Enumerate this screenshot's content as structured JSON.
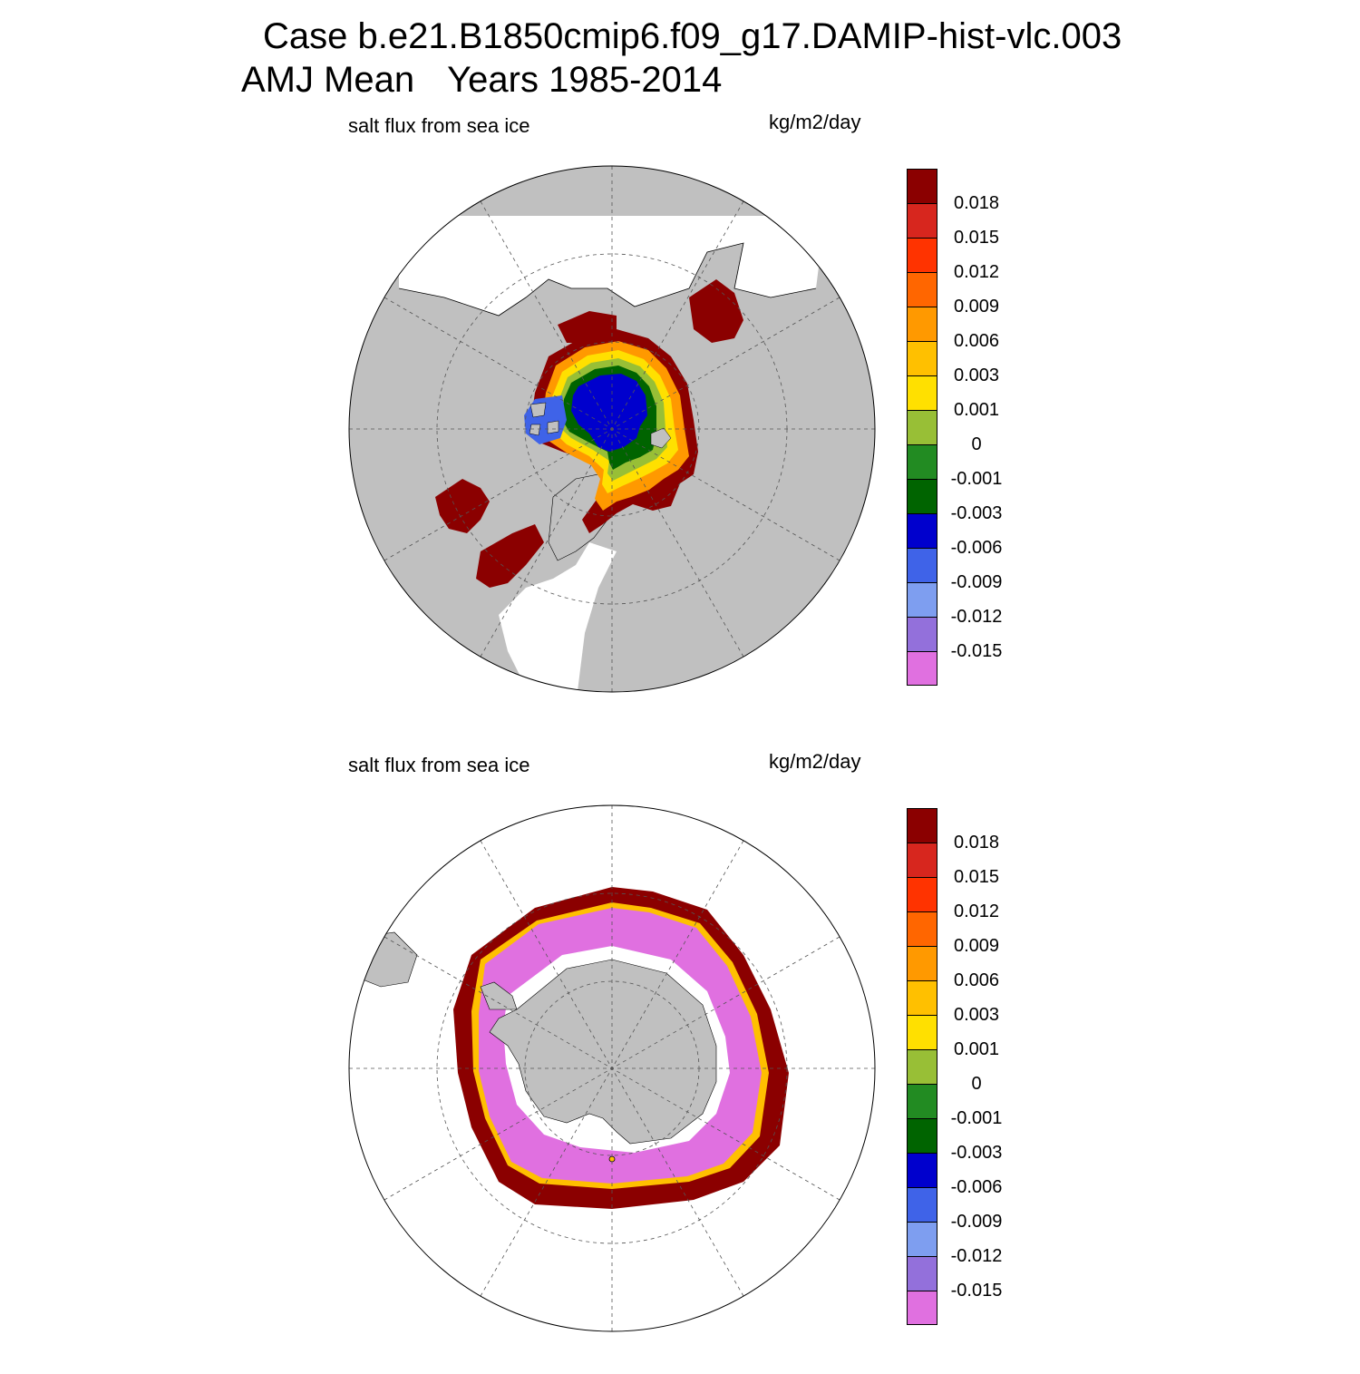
{
  "title": {
    "line1": "Case b.e21.B1850cmip6.f09_g17.DAMIP-hist-vlc.003",
    "line2_season": "AMJ Mean",
    "line2_years": "Years 1985-2014"
  },
  "panels": [
    {
      "id": "north",
      "variable_label": "salt flux from sea ice",
      "units_label": "kg/m2/day",
      "hemisphere": "north-polar-stereographic"
    },
    {
      "id": "south",
      "variable_label": "salt flux from sea ice",
      "units_label": "kg/m2/day",
      "hemisphere": "south-polar-stereographic"
    }
  ],
  "legend": {
    "levels": [
      "0.018",
      "0.015",
      "0.012",
      "0.009",
      "0.006",
      "0.003",
      "0.001",
      "0",
      "-0.001",
      "-0.003",
      "-0.006",
      "-0.009",
      "-0.012",
      "-0.015"
    ],
    "colors": [
      "#8b0000",
      "#d7261e",
      "#ff3300",
      "#ff6600",
      "#ff9900",
      "#ffc000",
      "#ffe000",
      "#98bf36",
      "#228b22",
      "#006400",
      "#0000cd",
      "#3f63e8",
      "#7e9ef0",
      "#9370db",
      "#e070e0"
    ]
  },
  "colors": {
    "land": "#c0c0c0",
    "ocean_no_ice": "#ffffff",
    "coastline": "#000000"
  }
}
